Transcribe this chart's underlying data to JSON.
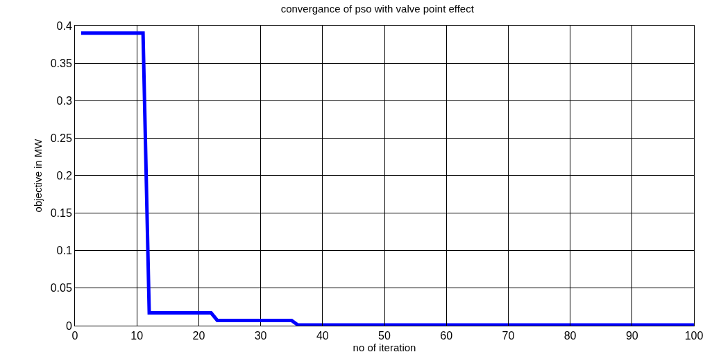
{
  "chart_data": {
    "type": "line",
    "title": "convergance of pso with valve point effect",
    "xlabel": "no of iteration",
    "ylabel": "objective in MW",
    "x": [
      1,
      11,
      12,
      22,
      23,
      35,
      36,
      100
    ],
    "series": [
      {
        "color": "#0000ff",
        "values": [
          0.39,
          0.39,
          0.017,
          0.017,
          0.007,
          0.007,
          0.001,
          0.001
        ]
      }
    ],
    "xlim": [
      0,
      100
    ],
    "xticks": [
      0,
      10,
      20,
      30,
      40,
      50,
      60,
      70,
      80,
      90,
      100
    ],
    "ylim": [
      0,
      0.4
    ],
    "yticks": [
      0,
      0.05,
      0.1,
      0.15,
      0.2,
      0.25,
      0.3,
      0.35,
      0.4
    ],
    "grid": true,
    "marker": "none",
    "line_style": "solid"
  }
}
